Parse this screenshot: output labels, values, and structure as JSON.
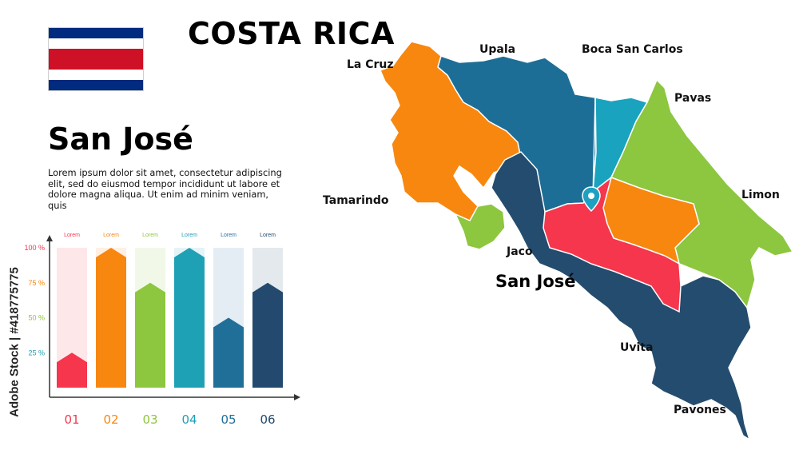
{
  "title": "COSTA RICA",
  "flag": {
    "icon": "costa-rica-flag-icon",
    "colors": [
      "#002b7f",
      "#ffffff",
      "#ce1126"
    ]
  },
  "region": {
    "name": "San José",
    "description": "Lorem ipsum dolor sit amet, consectetur adipiscing elit, sed do eiusmod tempor incididunt ut labore et dolore magna aliqua. Ut enim ad minim veniam, quis"
  },
  "chart_data": {
    "type": "bar",
    "categories": [
      "01",
      "02",
      "03",
      "04",
      "05",
      "06"
    ],
    "values": [
      25,
      100,
      75,
      100,
      50,
      75
    ],
    "bar_labels": [
      "Lorem",
      "Lorem",
      "Lorem",
      "Lorem",
      "Lorem",
      "Lorem"
    ],
    "colors": [
      "#f5364d",
      "#f7870f",
      "#8dc63f",
      "#1ea0b5",
      "#1f6f99",
      "#234a6e"
    ],
    "yticks": [
      "25 %",
      "50 %",
      "75 %",
      "100 %"
    ],
    "ytick_values": [
      25,
      50,
      75,
      100
    ],
    "ylim": [
      0,
      100
    ],
    "xlabel": "",
    "ylabel": ""
  },
  "map": {
    "pin_icon": "location-pin-icon",
    "highlighted_province": "San José",
    "places": [
      "Upala",
      "Boca San Carlos",
      "La Cruz",
      "Pavas",
      "Tamarindo",
      "Limon",
      "Jaco",
      "Uvita",
      "Pavones"
    ],
    "colors": {
      "guanacaste": "#f7870f",
      "alajuela": "#1d6e96",
      "heredia": "#1aa3be",
      "limon": "#8dc63f",
      "puntarenas": "#244c6e",
      "sanjose": "#f5364d",
      "cartago": "#f7870f",
      "nicoya_island": "#8dc63f"
    }
  },
  "watermark": "Adobe Stock | #418775775"
}
